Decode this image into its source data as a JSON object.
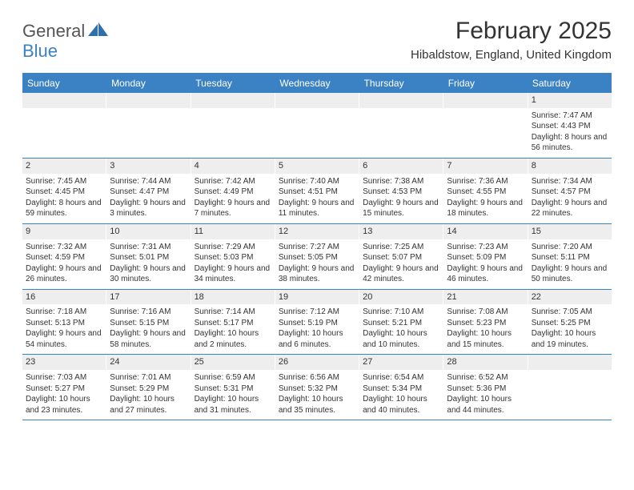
{
  "logo": {
    "word1": "General",
    "word2": "Blue",
    "mark_color": "#2e6fb0"
  },
  "title": "February 2025",
  "location": "Hibaldstow, England, United Kingdom",
  "header_bg": "#3b82c4",
  "weekdays": [
    "Sunday",
    "Monday",
    "Tuesday",
    "Wednesday",
    "Thursday",
    "Friday",
    "Saturday"
  ],
  "weeks": [
    [
      null,
      null,
      null,
      null,
      null,
      null,
      {
        "n": "1",
        "sr": "Sunrise: 7:47 AM",
        "ss": "Sunset: 4:43 PM",
        "dl": "Daylight: 8 hours and 56 minutes."
      }
    ],
    [
      {
        "n": "2",
        "sr": "Sunrise: 7:45 AM",
        "ss": "Sunset: 4:45 PM",
        "dl": "Daylight: 8 hours and 59 minutes."
      },
      {
        "n": "3",
        "sr": "Sunrise: 7:44 AM",
        "ss": "Sunset: 4:47 PM",
        "dl": "Daylight: 9 hours and 3 minutes."
      },
      {
        "n": "4",
        "sr": "Sunrise: 7:42 AM",
        "ss": "Sunset: 4:49 PM",
        "dl": "Daylight: 9 hours and 7 minutes."
      },
      {
        "n": "5",
        "sr": "Sunrise: 7:40 AM",
        "ss": "Sunset: 4:51 PM",
        "dl": "Daylight: 9 hours and 11 minutes."
      },
      {
        "n": "6",
        "sr": "Sunrise: 7:38 AM",
        "ss": "Sunset: 4:53 PM",
        "dl": "Daylight: 9 hours and 15 minutes."
      },
      {
        "n": "7",
        "sr": "Sunrise: 7:36 AM",
        "ss": "Sunset: 4:55 PM",
        "dl": "Daylight: 9 hours and 18 minutes."
      },
      {
        "n": "8",
        "sr": "Sunrise: 7:34 AM",
        "ss": "Sunset: 4:57 PM",
        "dl": "Daylight: 9 hours and 22 minutes."
      }
    ],
    [
      {
        "n": "9",
        "sr": "Sunrise: 7:32 AM",
        "ss": "Sunset: 4:59 PM",
        "dl": "Daylight: 9 hours and 26 minutes."
      },
      {
        "n": "10",
        "sr": "Sunrise: 7:31 AM",
        "ss": "Sunset: 5:01 PM",
        "dl": "Daylight: 9 hours and 30 minutes."
      },
      {
        "n": "11",
        "sr": "Sunrise: 7:29 AM",
        "ss": "Sunset: 5:03 PM",
        "dl": "Daylight: 9 hours and 34 minutes."
      },
      {
        "n": "12",
        "sr": "Sunrise: 7:27 AM",
        "ss": "Sunset: 5:05 PM",
        "dl": "Daylight: 9 hours and 38 minutes."
      },
      {
        "n": "13",
        "sr": "Sunrise: 7:25 AM",
        "ss": "Sunset: 5:07 PM",
        "dl": "Daylight: 9 hours and 42 minutes."
      },
      {
        "n": "14",
        "sr": "Sunrise: 7:23 AM",
        "ss": "Sunset: 5:09 PM",
        "dl": "Daylight: 9 hours and 46 minutes."
      },
      {
        "n": "15",
        "sr": "Sunrise: 7:20 AM",
        "ss": "Sunset: 5:11 PM",
        "dl": "Daylight: 9 hours and 50 minutes."
      }
    ],
    [
      {
        "n": "16",
        "sr": "Sunrise: 7:18 AM",
        "ss": "Sunset: 5:13 PM",
        "dl": "Daylight: 9 hours and 54 minutes."
      },
      {
        "n": "17",
        "sr": "Sunrise: 7:16 AM",
        "ss": "Sunset: 5:15 PM",
        "dl": "Daylight: 9 hours and 58 minutes."
      },
      {
        "n": "18",
        "sr": "Sunrise: 7:14 AM",
        "ss": "Sunset: 5:17 PM",
        "dl": "Daylight: 10 hours and 2 minutes."
      },
      {
        "n": "19",
        "sr": "Sunrise: 7:12 AM",
        "ss": "Sunset: 5:19 PM",
        "dl": "Daylight: 10 hours and 6 minutes."
      },
      {
        "n": "20",
        "sr": "Sunrise: 7:10 AM",
        "ss": "Sunset: 5:21 PM",
        "dl": "Daylight: 10 hours and 10 minutes."
      },
      {
        "n": "21",
        "sr": "Sunrise: 7:08 AM",
        "ss": "Sunset: 5:23 PM",
        "dl": "Daylight: 10 hours and 15 minutes."
      },
      {
        "n": "22",
        "sr": "Sunrise: 7:05 AM",
        "ss": "Sunset: 5:25 PM",
        "dl": "Daylight: 10 hours and 19 minutes."
      }
    ],
    [
      {
        "n": "23",
        "sr": "Sunrise: 7:03 AM",
        "ss": "Sunset: 5:27 PM",
        "dl": "Daylight: 10 hours and 23 minutes."
      },
      {
        "n": "24",
        "sr": "Sunrise: 7:01 AM",
        "ss": "Sunset: 5:29 PM",
        "dl": "Daylight: 10 hours and 27 minutes."
      },
      {
        "n": "25",
        "sr": "Sunrise: 6:59 AM",
        "ss": "Sunset: 5:31 PM",
        "dl": "Daylight: 10 hours and 31 minutes."
      },
      {
        "n": "26",
        "sr": "Sunrise: 6:56 AM",
        "ss": "Sunset: 5:32 PM",
        "dl": "Daylight: 10 hours and 35 minutes."
      },
      {
        "n": "27",
        "sr": "Sunrise: 6:54 AM",
        "ss": "Sunset: 5:34 PM",
        "dl": "Daylight: 10 hours and 40 minutes."
      },
      {
        "n": "28",
        "sr": "Sunrise: 6:52 AM",
        "ss": "Sunset: 5:36 PM",
        "dl": "Daylight: 10 hours and 44 minutes."
      },
      null
    ]
  ]
}
